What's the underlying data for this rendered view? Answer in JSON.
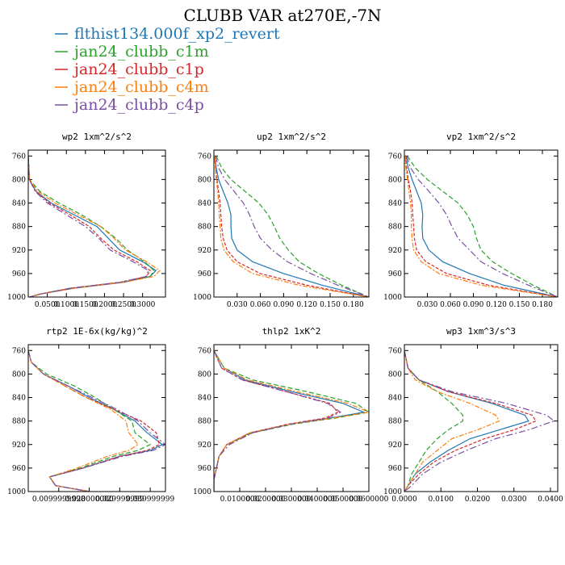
{
  "figure_title": "CLUBB VAR at270E,-7N",
  "legend": [
    {
      "label": "flthist134.000f_xp2_revert",
      "color": "#1f77b4"
    },
    {
      "label": "jan24_clubb_c1m",
      "color": "#2ca02c"
    },
    {
      "label": "jan24_clubb_c1p",
      "color": "#d62728"
    },
    {
      "label": "jan24_clubb_c4m",
      "color": "#ff7f0e"
    },
    {
      "label": "jan24_clubb_c4p",
      "color": "#7b4fa0"
    }
  ],
  "chart_data": [
    {
      "type": "line",
      "title": "wp2  1xm^2/s^2",
      "xlim": [
        0,
        0.36
      ],
      "ylim": [
        1000,
        750
      ],
      "yticks": [
        "760",
        "800",
        "840",
        "880",
        "920",
        "960",
        "1000"
      ],
      "yticks_values": [
        760,
        800,
        840,
        880,
        920,
        960,
        1000
      ],
      "xticks": [
        "0.0500",
        "0.1000",
        "0.1500",
        "0.2000",
        "0.2500",
        "0.3000"
      ],
      "xticks_values": [
        0.05,
        0.1,
        0.15,
        0.2,
        0.25,
        0.3
      ],
      "y": [
        760,
        800,
        820,
        840,
        860,
        880,
        900,
        920,
        940,
        955,
        965,
        975,
        985,
        995,
        1000
      ],
      "series": [
        {
          "name": "flthist134.000f_xp2_revert",
          "values": [
            0,
            0.003,
            0.02,
            0.06,
            0.12,
            0.18,
            0.21,
            0.24,
            0.3,
            0.335,
            0.32,
            0.25,
            0.12,
            0.03,
            0.004
          ]
        },
        {
          "name": "jan24_clubb_c1m",
          "values": [
            0,
            0.003,
            0.03,
            0.08,
            0.14,
            0.19,
            0.23,
            0.26,
            0.305,
            0.33,
            0.32,
            0.24,
            0.11,
            0.03,
            0.004
          ]
        },
        {
          "name": "jan24_clubb_c1p",
          "values": [
            0,
            0.003,
            0.02,
            0.055,
            0.11,
            0.16,
            0.19,
            0.225,
            0.285,
            0.32,
            0.31,
            0.24,
            0.11,
            0.03,
            0.004
          ]
        },
        {
          "name": "jan24_clubb_c4m",
          "values": [
            0,
            0.003,
            0.025,
            0.07,
            0.13,
            0.19,
            0.225,
            0.255,
            0.31,
            0.345,
            0.33,
            0.25,
            0.12,
            0.03,
            0.004
          ]
        },
        {
          "name": "jan24_clubb_c4p",
          "values": [
            0,
            0.003,
            0.018,
            0.05,
            0.1,
            0.15,
            0.185,
            0.215,
            0.275,
            0.315,
            0.31,
            0.24,
            0.11,
            0.03,
            0.004
          ]
        }
      ]
    },
    {
      "type": "line",
      "title": "up2  1xm^2/s^2",
      "xlim": [
        0,
        0.2
      ],
      "ylim": [
        1000,
        750
      ],
      "yticks": [
        "760",
        "800",
        "840",
        "880",
        "920",
        "960",
        "1000"
      ],
      "yticks_values": [
        760,
        800,
        840,
        880,
        920,
        960,
        1000
      ],
      "xticks": [
        "0.030",
        "0.060",
        "0.090",
        "0.120",
        "0.150",
        "0.180"
      ],
      "xticks_values": [
        0.03,
        0.06,
        0.09,
        0.12,
        0.15,
        0.18
      ],
      "y": [
        760,
        780,
        800,
        820,
        840,
        860,
        880,
        900,
        920,
        940,
        960,
        980,
        1000
      ],
      "series": [
        {
          "name": "flthist134.000f_xp2_revert",
          "values": [
            0.001,
            0.003,
            0.006,
            0.012,
            0.018,
            0.022,
            0.022,
            0.023,
            0.03,
            0.05,
            0.09,
            0.14,
            0.2
          ]
        },
        {
          "name": "jan24_clubb_c1m",
          "values": [
            0.003,
            0.01,
            0.022,
            0.04,
            0.058,
            0.07,
            0.078,
            0.085,
            0.096,
            0.11,
            0.135,
            0.165,
            0.2
          ]
        },
        {
          "name": "jan24_clubb_c1p",
          "values": [
            0.001,
            0.002,
            0.004,
            0.006,
            0.008,
            0.009,
            0.01,
            0.012,
            0.017,
            0.03,
            0.06,
            0.12,
            0.2
          ]
        },
        {
          "name": "jan24_clubb_c4m",
          "values": [
            0.001,
            0.002,
            0.003,
            0.005,
            0.006,
            0.007,
            0.008,
            0.009,
            0.013,
            0.025,
            0.05,
            0.11,
            0.2
          ]
        },
        {
          "name": "jan24_clubb_c4p",
          "values": [
            0.002,
            0.006,
            0.014,
            0.026,
            0.038,
            0.046,
            0.052,
            0.06,
            0.075,
            0.095,
            0.125,
            0.16,
            0.2
          ]
        }
      ]
    },
    {
      "type": "line",
      "title": "vp2  1xm^2/s^2",
      "xlim": [
        0,
        0.2
      ],
      "ylim": [
        1000,
        750
      ],
      "yticks": [
        "760",
        "800",
        "840",
        "880",
        "920",
        "960",
        "1000"
      ],
      "yticks_values": [
        760,
        800,
        840,
        880,
        920,
        960,
        1000
      ],
      "xticks": [
        "0.030",
        "0.060",
        "0.090",
        "0.120",
        "0.150",
        "0.180"
      ],
      "xticks_values": [
        0.03,
        0.06,
        0.09,
        0.12,
        0.15,
        0.18
      ],
      "y": [
        760,
        780,
        800,
        820,
        840,
        860,
        880,
        900,
        920,
        940,
        960,
        980,
        1000
      ],
      "series": [
        {
          "name": "flthist134.000f_xp2_revert",
          "values": [
            0.002,
            0.005,
            0.01,
            0.016,
            0.022,
            0.024,
            0.023,
            0.024,
            0.032,
            0.05,
            0.085,
            0.13,
            0.2
          ]
        },
        {
          "name": "jan24_clubb_c1m",
          "values": [
            0.004,
            0.014,
            0.03,
            0.05,
            0.07,
            0.082,
            0.09,
            0.094,
            0.1,
            0.115,
            0.14,
            0.168,
            0.2
          ]
        },
        {
          "name": "jan24_clubb_c1p",
          "values": [
            0.001,
            0.003,
            0.005,
            0.008,
            0.01,
            0.011,
            0.012,
            0.013,
            0.016,
            0.028,
            0.055,
            0.11,
            0.2
          ]
        },
        {
          "name": "jan24_clubb_c4m",
          "values": [
            0.001,
            0.002,
            0.004,
            0.006,
            0.008,
            0.009,
            0.009,
            0.01,
            0.012,
            0.022,
            0.045,
            0.1,
            0.2
          ]
        },
        {
          "name": "jan24_clubb_c4p",
          "values": [
            0.003,
            0.008,
            0.018,
            0.032,
            0.045,
            0.055,
            0.062,
            0.07,
            0.085,
            0.1,
            0.128,
            0.162,
            0.2
          ]
        }
      ]
    },
    {
      "type": "line",
      "title": "rtp2  1E-6x(kg/kg)^2",
      "xlim": [
        0,
        0.045
      ],
      "ylim": [
        1000,
        750
      ],
      "yticks": [
        "760",
        "800",
        "840",
        "880",
        "920",
        "960",
        "1000"
      ],
      "yticks_values": [
        760,
        800,
        840,
        880,
        920,
        960,
        1000
      ],
      "xticks": [
        "0.0099999998",
        "0.020000000",
        "0.029999999",
        "0.039999999"
      ],
      "xticks_values": [
        0.01,
        0.02,
        0.03,
        0.04
      ],
      "y": [
        760,
        780,
        800,
        820,
        840,
        860,
        880,
        900,
        920,
        930,
        940,
        960,
        975,
        990,
        1000
      ],
      "series": [
        {
          "name": "flthist134.000f_xp2_revert",
          "values": [
            0.0,
            0.001,
            0.005,
            0.013,
            0.02,
            0.028,
            0.035,
            0.039,
            0.044,
            0.04,
            0.03,
            0.018,
            0.007,
            0.009,
            0.02
          ]
        },
        {
          "name": "jan24_clubb_c1m",
          "values": [
            0.0,
            0.001,
            0.006,
            0.015,
            0.022,
            0.028,
            0.034,
            0.035,
            0.04,
            0.036,
            0.028,
            0.017,
            0.007,
            0.009,
            0.02
          ]
        },
        {
          "name": "jan24_clubb_c1p",
          "values": [
            0.0,
            0.001,
            0.005,
            0.012,
            0.019,
            0.028,
            0.037,
            0.042,
            0.043,
            0.039,
            0.03,
            0.018,
            0.007,
            0.009,
            0.02
          ]
        },
        {
          "name": "jan24_clubb_c4m",
          "values": [
            0.0,
            0.001,
            0.005,
            0.012,
            0.019,
            0.027,
            0.032,
            0.033,
            0.036,
            0.033,
            0.026,
            0.016,
            0.007,
            0.009,
            0.02
          ]
        },
        {
          "name": "jan24_clubb_c4p",
          "values": [
            0.0,
            0.001,
            0.005,
            0.013,
            0.021,
            0.029,
            0.036,
            0.04,
            0.045,
            0.041,
            0.031,
            0.018,
            0.007,
            0.009,
            0.02
          ]
        }
      ]
    },
    {
      "type": "line",
      "title": "thlp2  1xK^2",
      "xlim": [
        0,
        0.06
      ],
      "ylim": [
        1000,
        750
      ],
      "yticks": [
        "760",
        "800",
        "840",
        "880",
        "920",
        "960",
        "1000"
      ],
      "yticks_values": [
        760,
        800,
        840,
        880,
        920,
        960,
        1000
      ],
      "xticks": [
        "0.0100000",
        "0.0200000",
        "0.0300000",
        "0.0400000",
        "0.0500000",
        "0.0600000"
      ],
      "xticks_values": [
        0.01,
        0.02,
        0.03,
        0.04,
        0.05,
        0.06
      ],
      "y": [
        760,
        790,
        810,
        830,
        850,
        865,
        875,
        885,
        900,
        920,
        940,
        960,
        980,
        1000
      ],
      "series": [
        {
          "name": "flthist134.000f_xp2_revert",
          "values": [
            0.0,
            0.004,
            0.012,
            0.03,
            0.05,
            0.058,
            0.045,
            0.03,
            0.014,
            0.005,
            0.002,
            0.001,
            0.0,
            0.0
          ]
        },
        {
          "name": "jan24_clubb_c1m",
          "values": [
            0.0,
            0.004,
            0.015,
            0.036,
            0.055,
            0.06,
            0.047,
            0.031,
            0.015,
            0.005,
            0.002,
            0.001,
            0.0,
            0.0
          ]
        },
        {
          "name": "jan24_clubb_c1p",
          "values": [
            0.0,
            0.003,
            0.011,
            0.028,
            0.045,
            0.048,
            0.043,
            0.029,
            0.014,
            0.005,
            0.002,
            0.001,
            0.0,
            0.0
          ]
        },
        {
          "name": "jan24_clubb_c4m",
          "values": [
            0.0,
            0.004,
            0.013,
            0.032,
            0.052,
            0.06,
            0.046,
            0.03,
            0.014,
            0.005,
            0.002,
            0.001,
            0.0,
            0.0
          ]
        },
        {
          "name": "jan24_clubb_c4p",
          "values": [
            0.0,
            0.003,
            0.011,
            0.028,
            0.044,
            0.049,
            0.044,
            0.03,
            0.015,
            0.006,
            0.002,
            0.001,
            0.0,
            0.0
          ]
        }
      ]
    },
    {
      "type": "line",
      "title": "wp3  1xm^3/s^3",
      "xlim": [
        0,
        0.042
      ],
      "ylim": [
        1000,
        750
      ],
      "yticks": [
        "760",
        "800",
        "840",
        "880",
        "920",
        "960",
        "1000"
      ],
      "yticks_values": [
        760,
        800,
        840,
        880,
        920,
        960,
        1000
      ],
      "xticks": [
        "0.0000",
        "0.0100",
        "0.0200",
        "0.0300",
        "0.0400"
      ],
      "xticks_values": [
        0.0,
        0.01,
        0.02,
        0.03,
        0.04
      ],
      "y": [
        760,
        790,
        810,
        830,
        850,
        870,
        880,
        895,
        910,
        930,
        950,
        970,
        990,
        1000
      ],
      "series": [
        {
          "name": "flthist134.000f_xp2_revert",
          "values": [
            0.0,
            0.001,
            0.004,
            0.012,
            0.024,
            0.033,
            0.034,
            0.026,
            0.018,
            0.012,
            0.007,
            0.003,
            0.001,
            0.0
          ]
        },
        {
          "name": "jan24_clubb_c1m",
          "values": [
            0.0,
            0.001,
            0.004,
            0.009,
            0.013,
            0.016,
            0.016,
            0.012,
            0.009,
            0.006,
            0.004,
            0.002,
            0.001,
            0.0
          ]
        },
        {
          "name": "jan24_clubb_c1p",
          "values": [
            0.0,
            0.001,
            0.004,
            0.012,
            0.025,
            0.035,
            0.036,
            0.03,
            0.022,
            0.014,
            0.008,
            0.004,
            0.001,
            0.0
          ]
        },
        {
          "name": "jan24_clubb_c4m",
          "values": [
            0.0,
            0.001,
            0.003,
            0.009,
            0.018,
            0.025,
            0.026,
            0.02,
            0.013,
            0.009,
            0.005,
            0.003,
            0.001,
            0.0
          ]
        },
        {
          "name": "jan24_clubb_c4p",
          "values": [
            0.0,
            0.001,
            0.004,
            0.013,
            0.028,
            0.039,
            0.041,
            0.034,
            0.025,
            0.017,
            0.01,
            0.005,
            0.002,
            0.0
          ]
        }
      ]
    }
  ]
}
